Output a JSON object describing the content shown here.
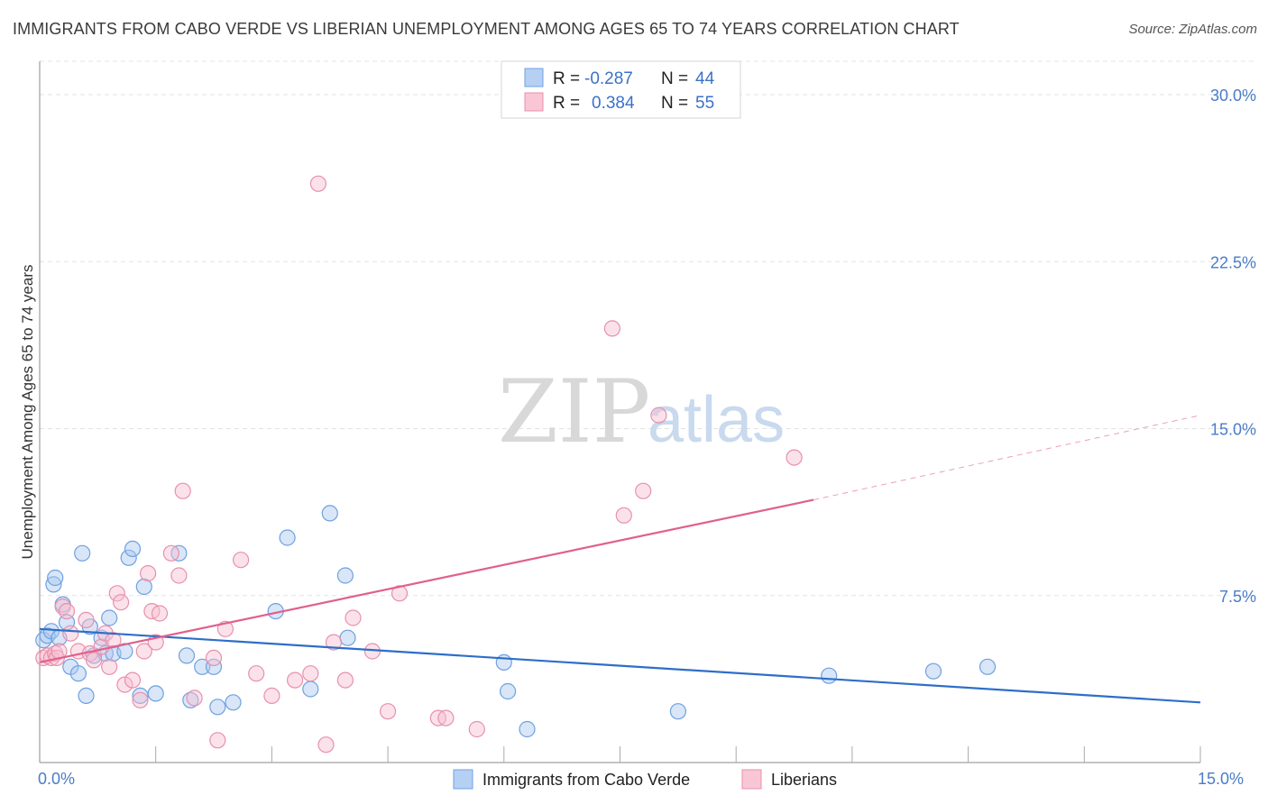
{
  "chart_data": {
    "type": "scatter",
    "title": "IMMIGRANTS FROM CABO VERDE VS LIBERIAN UNEMPLOYMENT AMONG AGES 65 TO 74 YEARS CORRELATION CHART",
    "source": "Source: ZipAtlas.com",
    "xlabel": "",
    "ylabel": "Unemployment Among Ages 65 to 74 years",
    "xlim": [
      0,
      15
    ],
    "ylim": [
      0,
      31.5
    ],
    "x_tick_labels": [
      "0.0%",
      "15.0%"
    ],
    "y_ticks": [
      7.5,
      15.0,
      22.5,
      30.0
    ],
    "y_tick_labels": [
      "7.5%",
      "15.0%",
      "22.5%",
      "30.0%"
    ],
    "watermark": {
      "zip": "ZIP",
      "atlas": "atlas"
    },
    "legend": {
      "r_label": "R =",
      "n_label": "N =",
      "entries": [
        {
          "r": "-0.287",
          "n": "44"
        },
        {
          "r": "0.384",
          "n": "55"
        }
      ]
    },
    "series": [
      {
        "name": "Immigrants from Cabo Verde",
        "color": "#6fa0e0",
        "fill": "#a9c8f0",
        "line_color": "#2e6ec8",
        "trend": {
          "x0": 0,
          "y0": 6.0,
          "x1": 15,
          "y1": 2.7
        },
        "points": [
          [
            0.05,
            5.5
          ],
          [
            0.1,
            5.7
          ],
          [
            0.15,
            5.9
          ],
          [
            0.18,
            8.0
          ],
          [
            0.2,
            8.3
          ],
          [
            0.25,
            5.6
          ],
          [
            0.3,
            7.1
          ],
          [
            0.35,
            6.3
          ],
          [
            0.4,
            4.3
          ],
          [
            0.5,
            4.0
          ],
          [
            0.55,
            9.4
          ],
          [
            0.6,
            3.0
          ],
          [
            0.65,
            6.1
          ],
          [
            0.7,
            4.8
          ],
          [
            0.8,
            5.6
          ],
          [
            0.85,
            4.9
          ],
          [
            0.9,
            6.5
          ],
          [
            0.95,
            4.9
          ],
          [
            1.1,
            5.0
          ],
          [
            1.15,
            9.2
          ],
          [
            1.2,
            9.6
          ],
          [
            1.3,
            3.0
          ],
          [
            1.35,
            7.9
          ],
          [
            1.5,
            3.1
          ],
          [
            1.8,
            9.4
          ],
          [
            1.9,
            4.8
          ],
          [
            1.95,
            2.8
          ],
          [
            2.1,
            4.3
          ],
          [
            2.25,
            4.3
          ],
          [
            2.3,
            2.5
          ],
          [
            2.5,
            2.7
          ],
          [
            3.05,
            6.8
          ],
          [
            3.2,
            10.1
          ],
          [
            3.5,
            3.3
          ],
          [
            3.75,
            11.2
          ],
          [
            3.95,
            8.4
          ],
          [
            3.98,
            5.6
          ],
          [
            6.0,
            4.5
          ],
          [
            6.05,
            3.2
          ],
          [
            6.3,
            1.5
          ],
          [
            8.25,
            2.3
          ],
          [
            10.2,
            3.9
          ],
          [
            11.55,
            4.1
          ],
          [
            12.25,
            4.3
          ]
        ]
      },
      {
        "name": "Liberians",
        "color": "#e890ac",
        "fill": "#f6bfd0",
        "line_color": "#e0608c",
        "trend": {
          "x0": 0,
          "y0": 4.5,
          "x1": 10.0,
          "y1": 11.8,
          "dash_x1": 15,
          "dash_y1": 15.6
        },
        "points": [
          [
            0.05,
            4.7
          ],
          [
            0.1,
            4.8
          ],
          [
            0.15,
            4.7
          ],
          [
            0.2,
            4.9
          ],
          [
            0.22,
            4.7
          ],
          [
            0.25,
            5.0
          ],
          [
            0.3,
            7.0
          ],
          [
            0.35,
            6.8
          ],
          [
            0.4,
            5.8
          ],
          [
            0.5,
            5.0
          ],
          [
            0.6,
            6.4
          ],
          [
            0.65,
            4.9
          ],
          [
            0.7,
            4.6
          ],
          [
            0.8,
            5.2
          ],
          [
            0.85,
            5.8
          ],
          [
            0.9,
            4.3
          ],
          [
            0.95,
            5.5
          ],
          [
            1.0,
            7.6
          ],
          [
            1.05,
            7.2
          ],
          [
            1.1,
            3.5
          ],
          [
            1.2,
            3.7
          ],
          [
            1.3,
            2.8
          ],
          [
            1.35,
            5.0
          ],
          [
            1.4,
            8.5
          ],
          [
            1.45,
            6.8
          ],
          [
            1.5,
            5.4
          ],
          [
            1.55,
            6.7
          ],
          [
            1.7,
            9.4
          ],
          [
            1.8,
            8.4
          ],
          [
            1.85,
            12.2
          ],
          [
            2.0,
            2.9
          ],
          [
            2.25,
            4.7
          ],
          [
            2.3,
            1.0
          ],
          [
            2.4,
            6.0
          ],
          [
            2.6,
            9.1
          ],
          [
            2.8,
            4.0
          ],
          [
            3.0,
            3.0
          ],
          [
            3.3,
            3.7
          ],
          [
            3.5,
            4.0
          ],
          [
            3.6,
            26.0
          ],
          [
            3.7,
            0.8
          ],
          [
            3.8,
            5.4
          ],
          [
            3.95,
            3.7
          ],
          [
            4.05,
            6.5
          ],
          [
            4.3,
            5.0
          ],
          [
            4.5,
            2.3
          ],
          [
            4.65,
            7.6
          ],
          [
            5.15,
            2.0
          ],
          [
            5.25,
            2.0
          ],
          [
            5.65,
            1.5
          ],
          [
            7.4,
            19.5
          ],
          [
            7.55,
            11.1
          ],
          [
            7.8,
            12.2
          ],
          [
            8.0,
            15.6
          ],
          [
            9.75,
            13.7
          ]
        ]
      }
    ]
  }
}
